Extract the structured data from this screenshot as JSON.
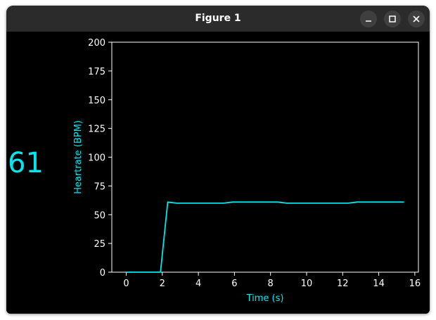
{
  "window": {
    "title": "Figure 1",
    "controls": {
      "minimize": "minimize-icon",
      "maximize": "maximize-icon",
      "close": "close-icon"
    }
  },
  "readout": {
    "bpm_value": "61"
  },
  "colors": {
    "accent": "#00e8ee",
    "background": "#000000",
    "titlebar": "#2b2b2b",
    "axis": "#ffffff"
  },
  "chart_data": {
    "type": "line",
    "title": "",
    "xlabel": "Time (s)",
    "ylabel": "Heartrate (BPM)",
    "xlim": [
      -0.8,
      16.2
    ],
    "ylim": [
      0,
      200
    ],
    "xticks": [
      0,
      2,
      4,
      6,
      8,
      10,
      12,
      14,
      16
    ],
    "yticks": [
      0,
      25,
      50,
      75,
      100,
      125,
      150,
      175,
      200
    ],
    "grid": false,
    "series": [
      {
        "color": "#00e8ee",
        "x": [
          0,
          1.9,
          2.3,
          2.8,
          5.4,
          5.9,
          8.4,
          8.9,
          12.3,
          12.8,
          15.4
        ],
        "y": [
          0,
          0,
          61,
          60,
          60,
          61,
          61,
          60,
          60,
          61,
          61
        ]
      }
    ]
  }
}
